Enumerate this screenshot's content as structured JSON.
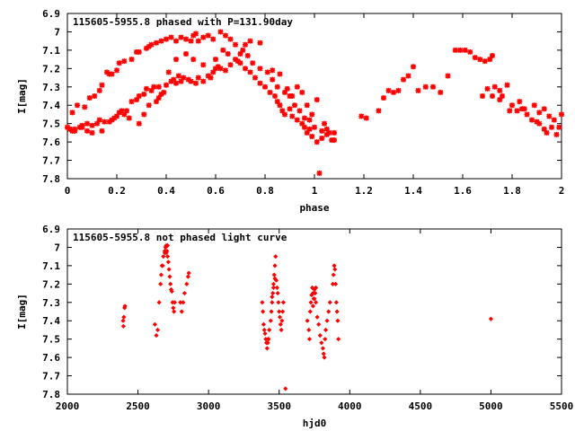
{
  "chart_data": [
    {
      "type": "scatter",
      "title": "115605-5955.8 phased with P=131.90day",
      "xlabel": "phase",
      "ylabel": "I[mag]",
      "xlim": [
        0,
        2
      ],
      "ylim": [
        6.9,
        7.8
      ],
      "y_inverted": true,
      "x_ticks": [
        0,
        0.2,
        0.4,
        0.6,
        0.8,
        1,
        1.2,
        1.4,
        1.6,
        1.8,
        2
      ],
      "x_tick_labels": [
        "0",
        "0.2",
        "0.4",
        "0.6",
        "0.8",
        "1",
        "1.2",
        "1.4",
        "1.6",
        "1.8",
        "2"
      ],
      "y_ticks": [
        6.9,
        7.0,
        7.1,
        7.2,
        7.3,
        7.4,
        7.5,
        7.6,
        7.7,
        7.8
      ],
      "y_tick_labels": [
        "6.9",
        "7",
        "7.1",
        "7.2",
        "7.3",
        "7.4",
        "7.5",
        "7.6",
        "7.7",
        "7.8"
      ],
      "color": "#ff0000",
      "marker": "star",
      "points": [
        [
          0.0,
          7.52
        ],
        [
          0.01,
          7.53
        ],
        [
          0.02,
          7.54
        ],
        [
          0.03,
          7.54
        ],
        [
          0.03,
          7.53
        ],
        [
          0.05,
          7.52
        ],
        [
          0.06,
          7.51
        ],
        [
          0.06,
          7.52
        ],
        [
          0.08,
          7.5
        ],
        [
          0.08,
          7.54
        ],
        [
          0.1,
          7.55
        ],
        [
          0.1,
          7.51
        ],
        [
          0.12,
          7.5
        ],
        [
          0.13,
          7.48
        ],
        [
          0.14,
          7.54
        ],
        [
          0.15,
          7.49
        ],
        [
          0.17,
          7.49
        ],
        [
          0.18,
          7.48
        ],
        [
          0.19,
          7.47
        ],
        [
          0.2,
          7.46
        ],
        [
          0.21,
          7.44
        ],
        [
          0.22,
          7.43
        ],
        [
          0.23,
          7.45
        ],
        [
          0.24,
          7.43
        ],
        [
          0.25,
          7.47
        ],
        [
          0.26,
          7.38
        ],
        [
          0.28,
          7.37
        ],
        [
          0.29,
          7.35
        ],
        [
          0.31,
          7.34
        ],
        [
          0.32,
          7.31
        ],
        [
          0.34,
          7.32
        ],
        [
          0.35,
          7.3
        ],
        [
          0.36,
          7.38
        ],
        [
          0.37,
          7.36
        ],
        [
          0.38,
          7.34
        ],
        [
          0.39,
          7.33
        ],
        [
          0.4,
          7.29
        ],
        [
          0.42,
          7.27
        ],
        [
          0.43,
          7.26
        ],
        [
          0.44,
          7.28
        ],
        [
          0.45,
          7.24
        ],
        [
          0.46,
          7.27
        ],
        [
          0.47,
          7.25
        ],
        [
          0.49,
          7.26
        ],
        [
          0.5,
          7.27
        ],
        [
          0.52,
          7.28
        ],
        [
          0.53,
          7.25
        ],
        [
          0.55,
          7.27
        ],
        [
          0.57,
          7.24
        ],
        [
          0.58,
          7.25
        ],
        [
          0.59,
          7.22
        ],
        [
          0.6,
          7.2
        ],
        [
          0.61,
          7.19
        ],
        [
          0.62,
          7.2
        ],
        [
          0.64,
          7.21
        ],
        [
          0.66,
          7.18
        ],
        [
          0.68,
          7.15
        ],
        [
          0.69,
          7.16
        ],
        [
          0.7,
          7.17
        ],
        [
          0.72,
          7.2
        ],
        [
          0.74,
          7.22
        ],
        [
          0.76,
          7.25
        ],
        [
          0.78,
          7.28
        ],
        [
          0.8,
          7.3
        ],
        [
          0.82,
          7.33
        ],
        [
          0.84,
          7.35
        ],
        [
          0.85,
          7.38
        ],
        [
          0.86,
          7.4
        ],
        [
          0.87,
          7.43
        ],
        [
          0.88,
          7.45
        ],
        [
          0.9,
          7.42
        ],
        [
          0.91,
          7.46
        ],
        [
          0.93,
          7.48
        ],
        [
          0.95,
          7.5
        ],
        [
          0.96,
          7.52
        ],
        [
          0.97,
          7.55
        ],
        [
          0.98,
          7.53
        ],
        [
          0.99,
          7.57
        ],
        [
          1.01,
          7.6
        ],
        [
          1.02,
          7.77
        ],
        [
          1.03,
          7.58
        ],
        [
          1.05,
          7.56
        ],
        [
          1.06,
          7.55
        ],
        [
          1.07,
          7.59
        ],
        [
          1.08,
          7.55
        ],
        [
          0.01,
          7.53
        ],
        [
          0.02,
          7.44
        ],
        [
          0.04,
          7.4
        ],
        [
          0.07,
          7.41
        ],
        [
          0.09,
          7.36
        ],
        [
          0.11,
          7.35
        ],
        [
          0.13,
          7.32
        ],
        [
          0.14,
          7.29
        ],
        [
          0.16,
          7.22
        ],
        [
          0.17,
          7.23
        ],
        [
          0.18,
          7.23
        ],
        [
          0.2,
          7.21
        ],
        [
          0.21,
          7.17
        ],
        [
          0.23,
          7.16
        ],
        [
          0.26,
          7.15
        ],
        [
          0.28,
          7.11
        ],
        [
          0.29,
          7.11
        ],
        [
          0.32,
          7.09
        ],
        [
          0.33,
          7.08
        ],
        [
          0.34,
          7.07
        ],
        [
          0.36,
          7.06
        ],
        [
          0.38,
          7.05
        ],
        [
          0.4,
          7.04
        ],
        [
          0.42,
          7.03
        ],
        [
          0.44,
          7.05
        ],
        [
          0.46,
          7.03
        ],
        [
          0.48,
          7.04
        ],
        [
          0.5,
          7.05
        ],
        [
          0.51,
          7.02
        ],
        [
          0.52,
          7.01
        ],
        [
          0.53,
          7.05
        ],
        [
          0.55,
          7.03
        ],
        [
          0.57,
          7.02
        ],
        [
          0.59,
          7.04
        ],
        [
          0.62,
          7.0
        ],
        [
          0.64,
          7.02
        ],
        [
          0.66,
          7.04
        ],
        [
          0.68,
          7.07
        ],
        [
          0.71,
          7.1
        ],
        [
          0.73,
          7.13
        ],
        [
          0.75,
          7.17
        ],
        [
          0.78,
          7.2
        ],
        [
          0.81,
          7.22
        ],
        [
          0.83,
          7.26
        ],
        [
          0.85,
          7.3
        ],
        [
          0.88,
          7.33
        ],
        [
          0.9,
          7.35
        ],
        [
          0.92,
          7.4
        ],
        [
          0.94,
          7.43
        ],
        [
          0.96,
          7.47
        ],
        [
          0.98,
          7.48
        ],
        [
          1.0,
          7.52
        ],
        [
          1.03,
          7.54
        ],
        [
          1.05,
          7.53
        ],
        [
          1.08,
          7.59
        ],
        [
          0.29,
          7.5
        ],
        [
          0.31,
          7.45
        ],
        [
          0.33,
          7.4
        ],
        [
          0.37,
          7.3
        ],
        [
          0.41,
          7.22
        ],
        [
          0.44,
          7.15
        ],
        [
          0.48,
          7.12
        ],
        [
          0.51,
          7.15
        ],
        [
          0.55,
          7.18
        ],
        [
          0.6,
          7.15
        ],
        [
          0.63,
          7.1
        ],
        [
          0.65,
          7.12
        ],
        [
          0.7,
          7.12
        ],
        [
          0.72,
          7.07
        ],
        [
          0.74,
          7.05
        ],
        [
          0.78,
          7.06
        ],
        [
          0.83,
          7.21
        ],
        [
          0.86,
          7.23
        ],
        [
          0.89,
          7.31
        ],
        [
          0.91,
          7.35
        ],
        [
          0.93,
          7.3
        ],
        [
          0.95,
          7.33
        ],
        [
          0.97,
          7.4
        ],
        [
          0.99,
          7.45
        ],
        [
          1.01,
          7.37
        ],
        [
          1.04,
          7.5
        ],
        [
          1.19,
          7.46
        ],
        [
          1.21,
          7.47
        ],
        [
          1.26,
          7.43
        ],
        [
          1.28,
          7.36
        ],
        [
          1.3,
          7.32
        ],
        [
          1.32,
          7.33
        ],
        [
          1.34,
          7.32
        ],
        [
          1.36,
          7.26
        ],
        [
          1.38,
          7.24
        ],
        [
          1.4,
          7.19
        ],
        [
          1.42,
          7.32
        ],
        [
          1.45,
          7.3
        ],
        [
          1.48,
          7.3
        ],
        [
          1.51,
          7.33
        ],
        [
          1.54,
          7.24
        ],
        [
          1.57,
          7.1
        ],
        [
          1.59,
          7.1
        ],
        [
          1.61,
          7.1
        ],
        [
          1.63,
          7.11
        ],
        [
          1.65,
          7.14
        ],
        [
          1.67,
          7.15
        ],
        [
          1.69,
          7.16
        ],
        [
          1.71,
          7.15
        ],
        [
          1.72,
          7.13
        ],
        [
          1.68,
          7.35
        ],
        [
          1.7,
          7.31
        ],
        [
          1.73,
          7.3
        ],
        [
          1.75,
          7.32
        ],
        [
          1.76,
          7.35
        ],
        [
          1.78,
          7.29
        ],
        [
          1.8,
          7.4
        ],
        [
          1.82,
          7.43
        ],
        [
          1.84,
          7.42
        ],
        [
          1.86,
          7.45
        ],
        [
          1.88,
          7.48
        ],
        [
          1.9,
          7.49
        ],
        [
          1.91,
          7.5
        ],
        [
          1.93,
          7.53
        ],
        [
          1.94,
          7.55
        ],
        [
          1.96,
          7.52
        ],
        [
          1.98,
          7.56
        ],
        [
          2.0,
          7.45
        ],
        [
          1.72,
          7.35
        ],
        [
          1.75,
          7.37
        ],
        [
          1.79,
          7.43
        ],
        [
          1.83,
          7.38
        ],
        [
          1.85,
          7.42
        ],
        [
          1.89,
          7.4
        ],
        [
          1.91,
          7.44
        ],
        [
          1.93,
          7.42
        ],
        [
          1.95,
          7.46
        ],
        [
          1.97,
          7.48
        ],
        [
          1.99,
          7.52
        ]
      ]
    },
    {
      "type": "scatter",
      "title": "115605-5955.8 not phased light curve",
      "xlabel": "hjd0",
      "ylabel": "I[mag]",
      "xlim": [
        2000,
        5500
      ],
      "ylim": [
        6.9,
        7.8
      ],
      "y_inverted": true,
      "x_ticks": [
        2000,
        2500,
        3000,
        3500,
        4000,
        4500,
        5000,
        5500
      ],
      "x_tick_labels": [
        "2000",
        "2500",
        "3000",
        "3500",
        "4000",
        "4500",
        "5000",
        "5500"
      ],
      "y_ticks": [
        6.9,
        7.0,
        7.1,
        7.2,
        7.3,
        7.4,
        7.5,
        7.6,
        7.7,
        7.8
      ],
      "y_tick_labels": [
        "6.9",
        "7",
        "7.1",
        "7.2",
        "7.3",
        "7.4",
        "7.5",
        "7.6",
        "7.7",
        "7.8"
      ],
      "color": "#ff0000",
      "marker": "diamond",
      "points": [
        [
          2395,
          7.4
        ],
        [
          2397,
          7.43
        ],
        [
          2400,
          7.38
        ],
        [
          2405,
          7.33
        ],
        [
          2408,
          7.32
        ],
        [
          2620,
          7.42
        ],
        [
          2630,
          7.48
        ],
        [
          2640,
          7.45
        ],
        [
          2650,
          7.3
        ],
        [
          2660,
          7.2
        ],
        [
          2665,
          7.15
        ],
        [
          2670,
          7.1
        ],
        [
          2680,
          7.05
        ],
        [
          2690,
          7.03
        ],
        [
          2695,
          7.0
        ],
        [
          2700,
          6.99
        ],
        [
          2705,
          7.02
        ],
        [
          2710,
          7.05
        ],
        [
          2715,
          7.08
        ],
        [
          2720,
          7.12
        ],
        [
          2725,
          7.16
        ],
        [
          2730,
          7.2
        ],
        [
          2740,
          7.24
        ],
        [
          2745,
          7.3
        ],
        [
          2750,
          7.33
        ],
        [
          2755,
          7.35
        ],
        [
          2760,
          7.3
        ],
        [
          2800,
          7.3
        ],
        [
          2810,
          7.35
        ],
        [
          2820,
          7.3
        ],
        [
          2830,
          7.25
        ],
        [
          2845,
          7.2
        ],
        [
          2855,
          7.16
        ],
        [
          2860,
          7.14
        ],
        [
          2690,
          7.02
        ],
        [
          2710,
          6.99
        ],
        [
          2700,
          7.03
        ],
        [
          2675,
          7.1
        ],
        [
          2735,
          7.23
        ],
        [
          3380,
          7.3
        ],
        [
          3385,
          7.35
        ],
        [
          3390,
          7.42
        ],
        [
          3395,
          7.45
        ],
        [
          3400,
          7.47
        ],
        [
          3405,
          7.5
        ],
        [
          3410,
          7.52
        ],
        [
          3415,
          7.55
        ],
        [
          3420,
          7.52
        ],
        [
          3425,
          7.5
        ],
        [
          3430,
          7.45
        ],
        [
          3440,
          7.4
        ],
        [
          3445,
          7.35
        ],
        [
          3450,
          7.3
        ],
        [
          3455,
          7.25
        ],
        [
          3460,
          7.2
        ],
        [
          3465,
          7.15
        ],
        [
          3470,
          7.1
        ],
        [
          3475,
          7.05
        ],
        [
          3480,
          7.18
        ],
        [
          3485,
          7.22
        ],
        [
          3490,
          7.25
        ],
        [
          3495,
          7.3
        ],
        [
          3500,
          7.35
        ],
        [
          3505,
          7.38
        ],
        [
          3510,
          7.42
        ],
        [
          3515,
          7.45
        ],
        [
          3520,
          7.4
        ],
        [
          3525,
          7.35
        ],
        [
          3530,
          7.3
        ],
        [
          3545,
          7.77
        ],
        [
          3470,
          7.17
        ],
        [
          3460,
          7.22
        ],
        [
          3450,
          7.27
        ],
        [
          3420,
          7.5
        ],
        [
          3700,
          7.4
        ],
        [
          3710,
          7.45
        ],
        [
          3715,
          7.5
        ],
        [
          3720,
          7.35
        ],
        [
          3725,
          7.3
        ],
        [
          3730,
          7.26
        ],
        [
          3735,
          7.22
        ],
        [
          3740,
          7.25
        ],
        [
          3745,
          7.28
        ],
        [
          3750,
          7.23
        ],
        [
          3755,
          7.25
        ],
        [
          3760,
          7.3
        ],
        [
          3770,
          7.38
        ],
        [
          3780,
          7.42
        ],
        [
          3790,
          7.48
        ],
        [
          3800,
          7.52
        ],
        [
          3810,
          7.55
        ],
        [
          3815,
          7.58
        ],
        [
          3820,
          7.6
        ],
        [
          3825,
          7.5
        ],
        [
          3830,
          7.45
        ],
        [
          3840,
          7.4
        ],
        [
          3850,
          7.35
        ],
        [
          3860,
          7.3
        ],
        [
          3880,
          7.2
        ],
        [
          3885,
          7.15
        ],
        [
          3890,
          7.1
        ],
        [
          3895,
          7.12
        ],
        [
          3900,
          7.2
        ],
        [
          3905,
          7.3
        ],
        [
          3910,
          7.35
        ],
        [
          3915,
          7.4
        ],
        [
          3920,
          7.5
        ],
        [
          3760,
          7.22
        ],
        [
          3750,
          7.28
        ],
        [
          3740,
          7.32
        ],
        [
          5000,
          7.39
        ]
      ]
    }
  ]
}
